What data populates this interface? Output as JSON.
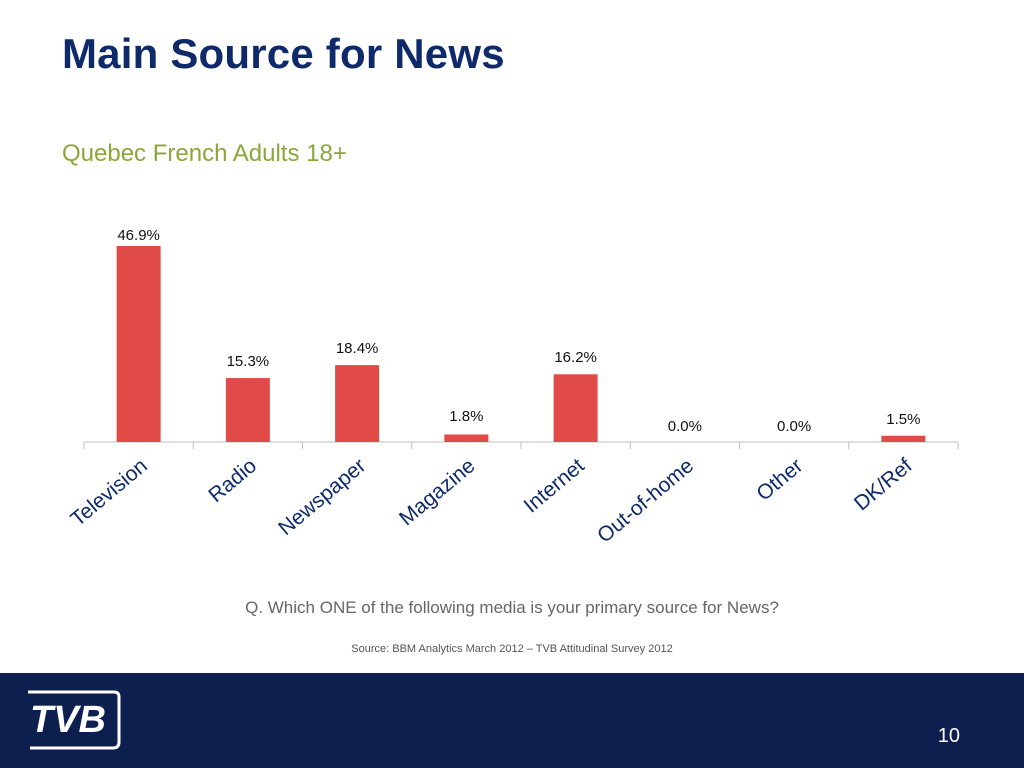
{
  "slide": {
    "title": "Main Source for News",
    "subtitle": "Quebec French Adults 18+",
    "question": "Q. Which ONE of the following media is your primary source for News?",
    "source": "Source: BBM Analytics March 2012 – TVB Attitudinal Survey 2012",
    "page_number": "10",
    "logo_text": "TVB"
  },
  "colors": {
    "bar": "#e04b48",
    "title": "#0f2a6b",
    "subtitle": "#8aa83a",
    "footer": "#0c1f4f"
  },
  "chart_data": {
    "type": "bar",
    "categories": [
      "Television",
      "Radio",
      "Newspaper",
      "Magazine",
      "Internet",
      "Out-of-home",
      "Other",
      "DK/Ref"
    ],
    "values": [
      46.9,
      15.3,
      18.4,
      1.8,
      16.2,
      0.0,
      0.0,
      1.5
    ],
    "data_labels": [
      "46.9%",
      "15.3%",
      "18.4%",
      "1.8%",
      "16.2%",
      "0.0%",
      "0.0%",
      "1.5%"
    ],
    "unit": "%",
    "xlabel": "",
    "ylabel": "",
    "ylim": [
      0,
      46.9
    ],
    "grid": false,
    "legend": "none"
  }
}
